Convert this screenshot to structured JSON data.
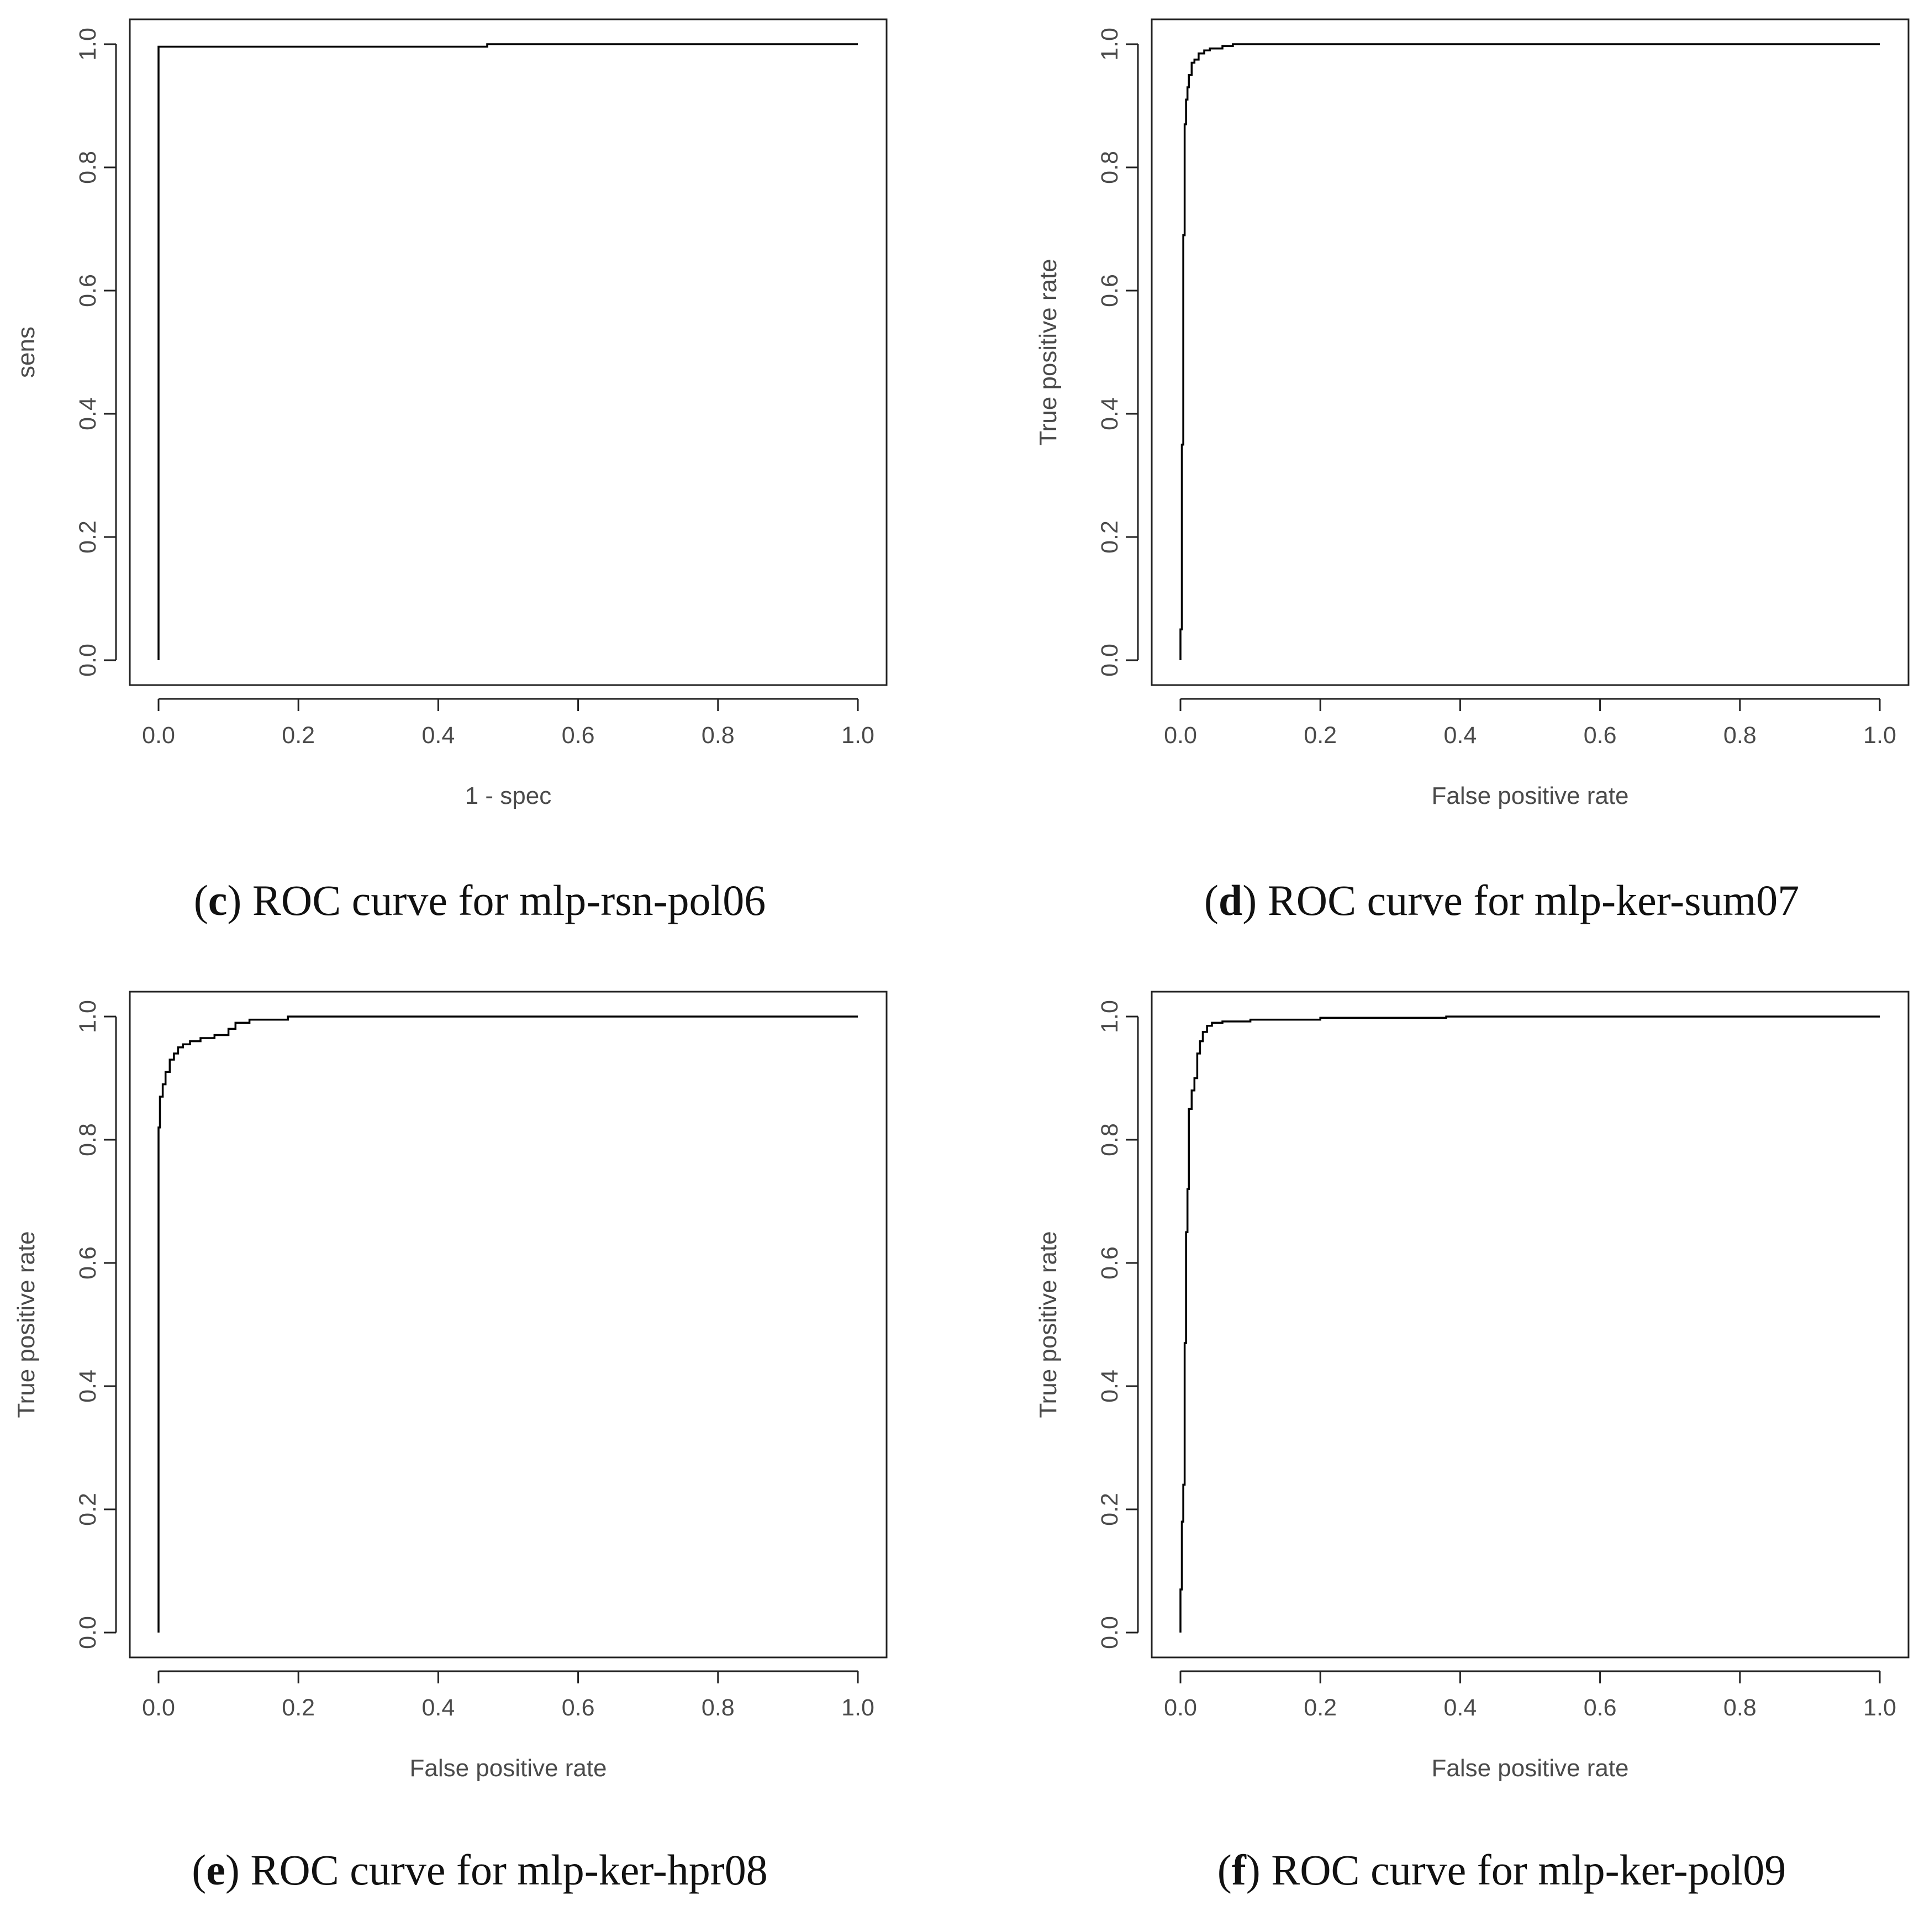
{
  "chart_data": [
    {
      "type": "line",
      "panel_letter": "c",
      "caption": "ROC curve for mlp-rsn-pol06",
      "xlabel": "1 - spec",
      "ylabel": "sens",
      "xlim": [
        0,
        1
      ],
      "ylim": [
        0,
        1
      ],
      "xticks": [
        "0.0",
        "0.2",
        "0.4",
        "0.6",
        "0.8",
        "1.0"
      ],
      "yticks": [
        "0.0",
        "0.2",
        "0.4",
        "0.6",
        "0.8",
        "1.0"
      ],
      "grid": false,
      "series": [
        {
          "x": [
            0,
            0,
            0.47,
            0.47,
            1.0
          ],
          "y": [
            0,
            0.996,
            0.996,
            1.0,
            1.0
          ]
        }
      ]
    },
    {
      "type": "line",
      "panel_letter": "d",
      "caption": "ROC curve for mlp-ker-sum07",
      "xlabel": "False positive rate",
      "ylabel": "True positive rate",
      "xlim": [
        0,
        1
      ],
      "ylim": [
        0,
        1
      ],
      "xticks": [
        "0.0",
        "0.2",
        "0.4",
        "0.6",
        "0.8",
        "1.0"
      ],
      "yticks": [
        "0.0",
        "0.2",
        "0.4",
        "0.6",
        "0.8",
        "1.0"
      ],
      "grid": false,
      "series": [
        {
          "x": [
            0,
            0,
            0.002,
            0.002,
            0.004,
            0.004,
            0.006,
            0.006,
            0.008,
            0.008,
            0.01,
            0.01,
            0.012,
            0.012,
            0.016,
            0.016,
            0.02,
            0.02,
            0.026,
            0.026,
            0.034,
            0.034,
            0.042,
            0.042,
            0.06,
            0.06,
            0.075,
            0.075,
            1.0
          ],
          "y": [
            0,
            0.05,
            0.05,
            0.35,
            0.35,
            0.69,
            0.69,
            0.87,
            0.87,
            0.91,
            0.91,
            0.93,
            0.93,
            0.95,
            0.95,
            0.97,
            0.97,
            0.975,
            0.975,
            0.985,
            0.985,
            0.99,
            0.99,
            0.993,
            0.993,
            0.997,
            0.997,
            1.0,
            1.0
          ]
        }
      ]
    },
    {
      "type": "line",
      "panel_letter": "e",
      "caption": "ROC curve for mlp-ker-hpr08",
      "xlabel": "False positive rate",
      "ylabel": "True positive rate",
      "xlim": [
        0,
        1
      ],
      "ylim": [
        0,
        1
      ],
      "xticks": [
        "0.0",
        "0.2",
        "0.4",
        "0.6",
        "0.8",
        "1.0"
      ],
      "yticks": [
        "0.0",
        "0.2",
        "0.4",
        "0.6",
        "0.8",
        "1.0"
      ],
      "grid": false,
      "series": [
        {
          "x": [
            0,
            0,
            0.002,
            0.002,
            0.006,
            0.006,
            0.01,
            0.01,
            0.016,
            0.016,
            0.022,
            0.022,
            0.028,
            0.028,
            0.035,
            0.035,
            0.045,
            0.045,
            0.06,
            0.06,
            0.08,
            0.08,
            0.1,
            0.1,
            0.11,
            0.11,
            0.13,
            0.13,
            0.185,
            0.185,
            1.0
          ],
          "y": [
            0,
            0.82,
            0.82,
            0.87,
            0.87,
            0.89,
            0.89,
            0.91,
            0.91,
            0.93,
            0.93,
            0.94,
            0.94,
            0.95,
            0.95,
            0.955,
            0.955,
            0.96,
            0.96,
            0.965,
            0.965,
            0.97,
            0.97,
            0.98,
            0.98,
            0.99,
            0.99,
            0.995,
            0.995,
            1.0,
            1.0
          ]
        }
      ]
    },
    {
      "type": "line",
      "panel_letter": "f",
      "caption": "ROC curve for mlp-ker-pol09",
      "xlabel": "False positive rate",
      "ylabel": "True positive rate",
      "xlim": [
        0,
        1
      ],
      "ylim": [
        0,
        1
      ],
      "xticks": [
        "0.0",
        "0.2",
        "0.4",
        "0.6",
        "0.8",
        "1.0"
      ],
      "yticks": [
        "0.0",
        "0.2",
        "0.4",
        "0.6",
        "0.8",
        "1.0"
      ],
      "grid": false,
      "series": [
        {
          "x": [
            0,
            0,
            0.002,
            0.002,
            0.004,
            0.004,
            0.006,
            0.006,
            0.008,
            0.008,
            0.01,
            0.01,
            0.012,
            0.012,
            0.016,
            0.016,
            0.02,
            0.02,
            0.024,
            0.024,
            0.028,
            0.028,
            0.032,
            0.032,
            0.038,
            0.038,
            0.045,
            0.045,
            0.06,
            0.06,
            0.1,
            0.1,
            0.2,
            0.2,
            0.38,
            0.38,
            1.0
          ],
          "y": [
            0,
            0.07,
            0.07,
            0.18,
            0.18,
            0.24,
            0.24,
            0.47,
            0.47,
            0.65,
            0.65,
            0.72,
            0.72,
            0.85,
            0.85,
            0.88,
            0.88,
            0.9,
            0.9,
            0.94,
            0.94,
            0.96,
            0.96,
            0.975,
            0.975,
            0.985,
            0.985,
            0.99,
            0.99,
            0.992,
            0.992,
            0.995,
            0.995,
            0.998,
            0.998,
            1.0,
            1.0
          ]
        }
      ]
    }
  ]
}
